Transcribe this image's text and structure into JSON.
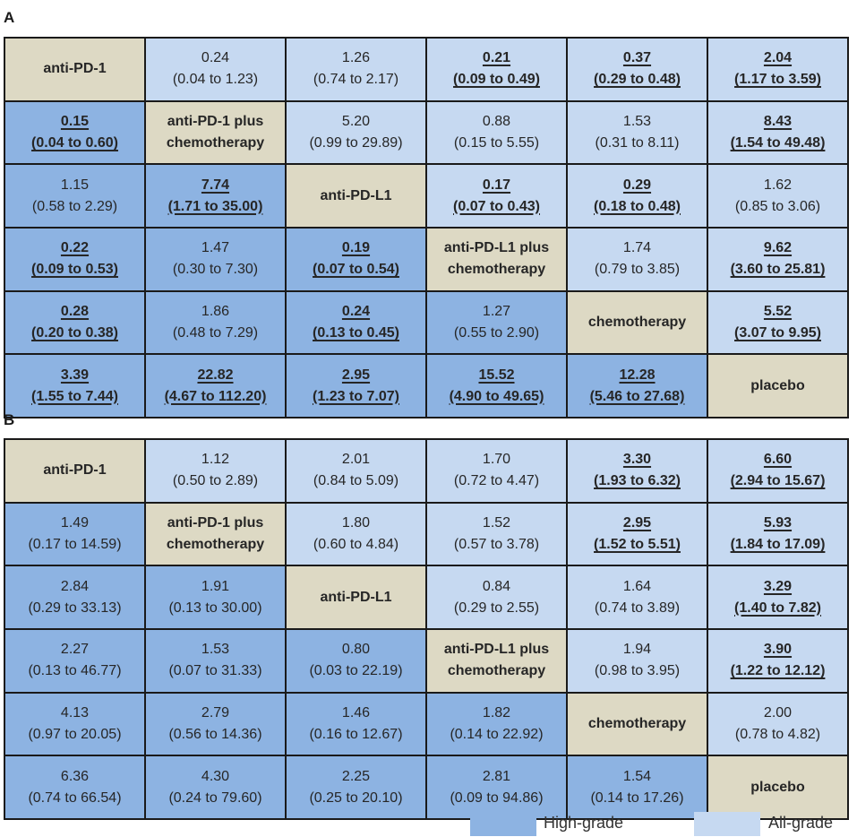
{
  "chart_data": [
    {
      "type": "table",
      "panel": "A",
      "treatments": [
        "anti-PD-1",
        "anti-PD-1 plus chemotherapy",
        "anti-PD-L1",
        "anti-PD-L1 plus chemotherapy",
        "chemotherapy",
        "placebo"
      ],
      "rows": [
        [
          {
            "diag": "anti-PD-1"
          },
          {
            "v": "0.24",
            "ci": "(0.04 to 1.23)"
          },
          {
            "v": "1.26",
            "ci": "(0.74 to 2.17)"
          },
          {
            "v": "0.21",
            "ci": "(0.09 to 0.49)",
            "sig": true
          },
          {
            "v": "0.37",
            "ci": "(0.29 to 0.48)",
            "sig": true
          },
          {
            "v": "2.04",
            "ci": "(1.17 to 3.59)",
            "sig": true
          }
        ],
        [
          {
            "v": "0.15",
            "ci": "(0.04 to 0.60)",
            "sig": true
          },
          {
            "diag": "anti-PD-1 plus",
            "diag2": "chemotherapy"
          },
          {
            "v": "5.20",
            "ci": "(0.99 to 29.89)"
          },
          {
            "v": "0.88",
            "ci": "(0.15 to 5.55)"
          },
          {
            "v": "1.53",
            "ci": "(0.31 to 8.11)"
          },
          {
            "v": "8.43",
            "ci": "(1.54 to 49.48)",
            "sig": true
          }
        ],
        [
          {
            "v": "1.15",
            "ci": "(0.58 to 2.29)"
          },
          {
            "v": "7.74",
            "ci": "(1.71 to 35.00)",
            "sig": true
          },
          {
            "diag": "anti-PD-L1"
          },
          {
            "v": "0.17",
            "ci": "(0.07 to 0.43)",
            "sig": true
          },
          {
            "v": "0.29",
            "ci": "(0.18 to 0.48)",
            "sig": true
          },
          {
            "v": "1.62",
            "ci": "(0.85 to 3.06)"
          }
        ],
        [
          {
            "v": "0.22",
            "ci": "(0.09 to 0.53)",
            "sig": true
          },
          {
            "v": "1.47",
            "ci": "(0.30 to 7.30)"
          },
          {
            "v": "0.19",
            "ci": "(0.07 to 0.54)",
            "sig": true
          },
          {
            "diag": "anti-PD-L1 plus",
            "diag2": "chemotherapy"
          },
          {
            "v": "1.74",
            "ci": "(0.79 to 3.85)"
          },
          {
            "v": "9.62",
            "ci": "(3.60 to 25.81)",
            "sig": true
          }
        ],
        [
          {
            "v": "0.28",
            "ci": "(0.20 to 0.38)",
            "sig": true
          },
          {
            "v": "1.86",
            "ci": "(0.48 to 7.29)"
          },
          {
            "v": "0.24",
            "ci": "(0.13 to 0.45)",
            "sig": true
          },
          {
            "v": "1.27",
            "ci": "(0.55 to 2.90)"
          },
          {
            "diag": "chemotherapy"
          },
          {
            "v": "5.52",
            "ci": "(3.07 to 9.95)",
            "sig": true
          }
        ],
        [
          {
            "v": "3.39",
            "ci": "(1.55 to 7.44)",
            "sig": true
          },
          {
            "v": "22.82",
            "ci": "(4.67 to 112.20)",
            "sig": true
          },
          {
            "v": "2.95",
            "ci": "(1.23 to 7.07)",
            "sig": true
          },
          {
            "v": "15.52",
            "ci": "(4.90 to 49.65)",
            "sig": true
          },
          {
            "v": "12.28",
            "ci": "(5.46 to 27.68)",
            "sig": true
          },
          {
            "diag": "placebo"
          }
        ]
      ]
    },
    {
      "type": "table",
      "panel": "B",
      "treatments": [
        "anti-PD-1",
        "anti-PD-1 plus chemotherapy",
        "anti-PD-L1",
        "anti-PD-L1 plus chemotherapy",
        "chemotherapy",
        "placebo"
      ],
      "rows": [
        [
          {
            "diag": "anti-PD-1"
          },
          {
            "v": "1.12",
            "ci": "(0.50 to 2.89)"
          },
          {
            "v": "2.01",
            "ci": "(0.84 to 5.09)"
          },
          {
            "v": "1.70",
            "ci": "(0.72 to 4.47)"
          },
          {
            "v": "3.30",
            "ci": "(1.93 to 6.32)",
            "sig": true
          },
          {
            "v": "6.60",
            "ci": "(2.94 to 15.67)",
            "sig": true
          }
        ],
        [
          {
            "v": "1.49",
            "ci": "(0.17 to 14.59)"
          },
          {
            "diag": "anti-PD-1 plus",
            "diag2": "chemotherapy"
          },
          {
            "v": "1.80",
            "ci": "(0.60 to 4.84)"
          },
          {
            "v": "1.52",
            "ci": "(0.57 to 3.78)"
          },
          {
            "v": "2.95",
            "ci": "(1.52 to 5.51)",
            "sig": true
          },
          {
            "v": "5.93",
            "ci": "(1.84 to 17.09)",
            "sig": true
          }
        ],
        [
          {
            "v": "2.84",
            "ci": "(0.29 to 33.13)"
          },
          {
            "v": "1.91",
            "ci": "(0.13 to 30.00)"
          },
          {
            "diag": "anti-PD-L1"
          },
          {
            "v": "0.84",
            "ci": "(0.29 to 2.55)"
          },
          {
            "v": "1.64",
            "ci": "(0.74 to 3.89)"
          },
          {
            "v": "3.29",
            "ci": "(1.40 to 7.82)",
            "sig": true
          }
        ],
        [
          {
            "v": "2.27",
            "ci": "(0.13 to 46.77)"
          },
          {
            "v": "1.53",
            "ci": "(0.07 to 31.33)"
          },
          {
            "v": "0.80",
            "ci": "(0.03 to 22.19)"
          },
          {
            "diag": "anti-PD-L1 plus",
            "diag2": "chemotherapy"
          },
          {
            "v": "1.94",
            "ci": "(0.98 to 3.95)"
          },
          {
            "v": "3.90",
            "ci": "(1.22 to 12.12)",
            "sig": true
          }
        ],
        [
          {
            "v": "4.13",
            "ci": "(0.97 to 20.05)"
          },
          {
            "v": "2.79",
            "ci": "(0.56 to 14.36)"
          },
          {
            "v": "1.46",
            "ci": "(0.16 to 12.67)"
          },
          {
            "v": "1.82",
            "ci": "(0.14 to 22.92)"
          },
          {
            "diag": "chemotherapy"
          },
          {
            "v": "2.00",
            "ci": "(0.78 to 4.82)"
          }
        ],
        [
          {
            "v": "6.36",
            "ci": "(0.74 to 66.54)"
          },
          {
            "v": "4.30",
            "ci": "(0.24 to 79.60)"
          },
          {
            "v": "2.25",
            "ci": "(0.25 to 20.10)"
          },
          {
            "v": "2.81",
            "ci": "(0.09 to 94.86)"
          },
          {
            "v": "1.54",
            "ci": "(0.14 to 17.26)"
          },
          {
            "diag": "placebo"
          }
        ]
      ]
    }
  ],
  "legend": {
    "high_grade": "High-grade",
    "all_grade": "All-grade"
  },
  "colors": {
    "high_grade": "#8db3e2",
    "all_grade": "#c6d9f1",
    "treatment": "#ddd9c4"
  }
}
